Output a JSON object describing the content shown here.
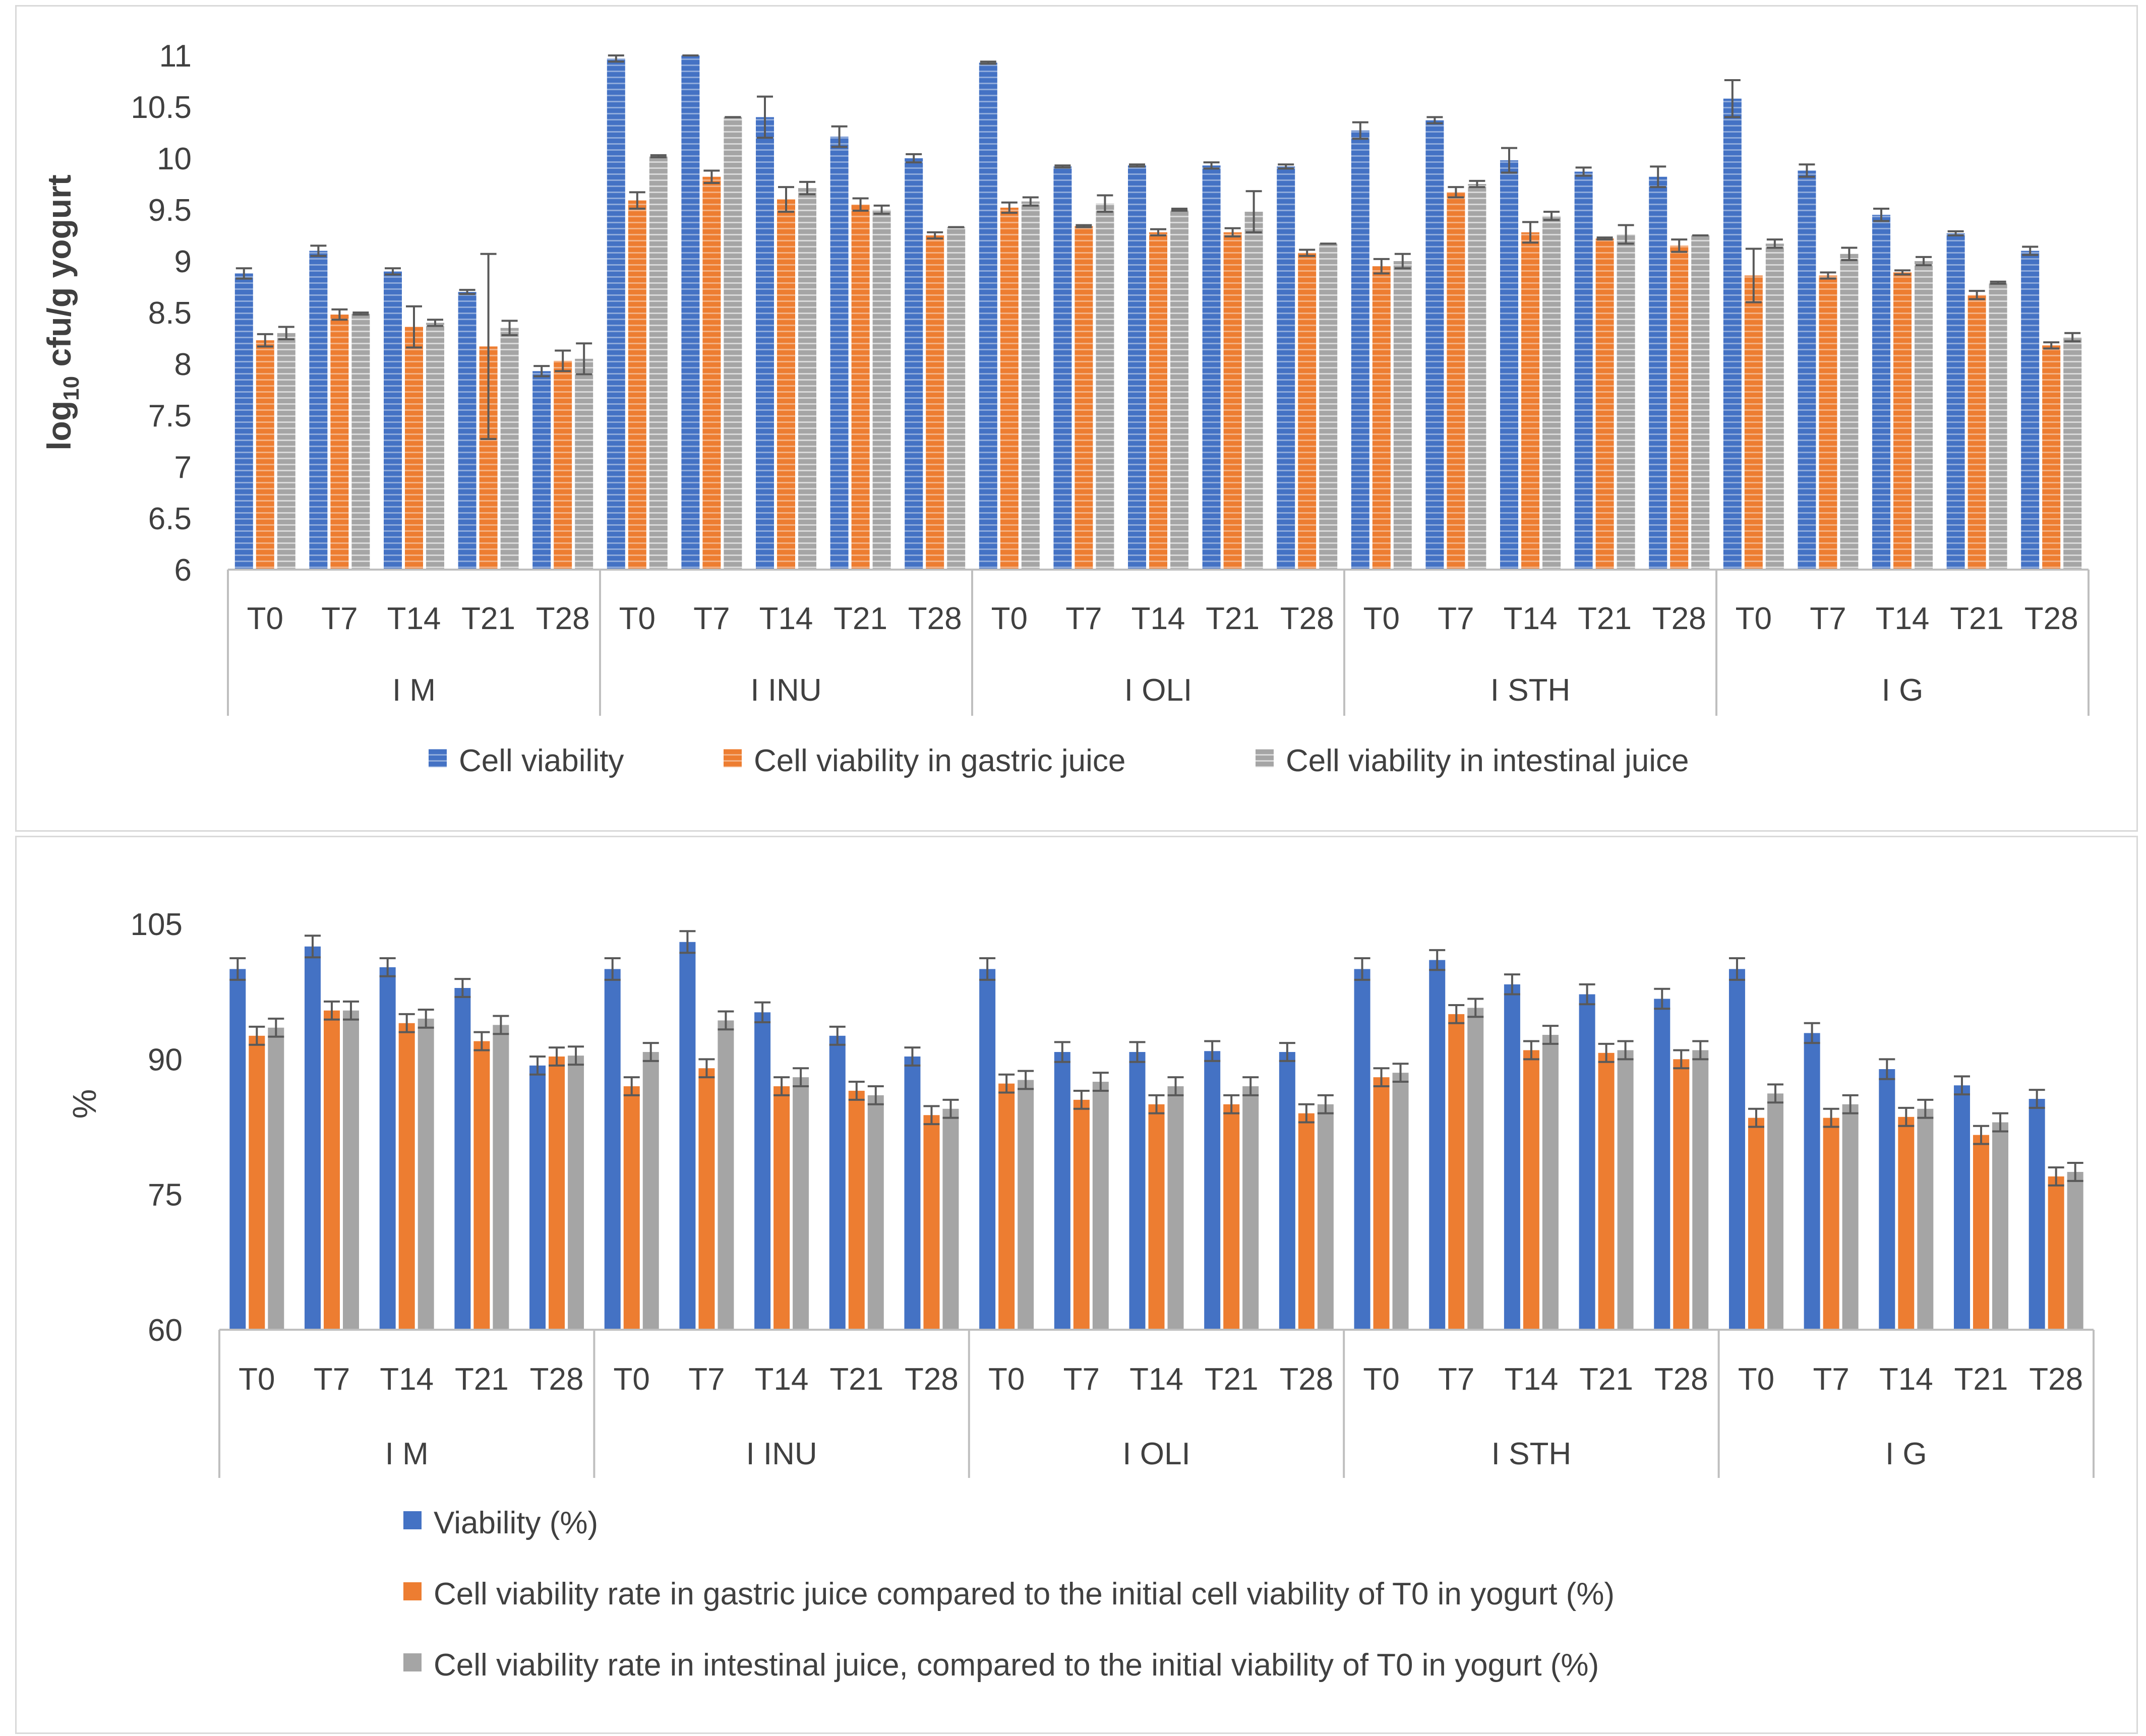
{
  "chart_data": [
    {
      "type": "bar",
      "title": "",
      "ylabel": "log10 cfu/g yogurt",
      "ylabel_main": "log",
      "ylabel_sub": "10",
      "ylabel_rest": " cfu/g yogurt",
      "ylim": [
        6,
        11
      ],
      "yticks": [
        "6",
        "6.5",
        "7",
        "7.5",
        "8",
        "8.5",
        "9",
        "9.5",
        "10",
        "10.5",
        "11"
      ],
      "groups": [
        "I M",
        "I INU",
        "I OLI",
        "I STH",
        "I G"
      ],
      "timepoints": [
        "T0",
        "T7",
        "T14",
        "T21",
        "T28"
      ],
      "legend_position": "bottom",
      "series": [
        {
          "name": "Cell viability",
          "color": "#4472c4",
          "values": [
            8.88,
            9.1,
            8.9,
            8.7,
            7.93,
            10.97,
            11.0,
            10.4,
            10.21,
            10.0,
            10.93,
            9.92,
            9.93,
            9.93,
            9.92,
            10.27,
            10.37,
            9.98,
            9.87,
            9.82,
            10.58,
            9.88,
            9.45,
            9.27,
            9.1
          ],
          "errors": [
            0.05,
            0.05,
            0.03,
            0.02,
            0.05,
            0.03,
            0.0,
            0.2,
            0.1,
            0.04,
            0.01,
            0.01,
            0.01,
            0.03,
            0.02,
            0.08,
            0.03,
            0.12,
            0.04,
            0.1,
            0.18,
            0.06,
            0.06,
            0.02,
            0.04
          ]
        },
        {
          "name": "Cell viability in gastric juice",
          "color": "#ed7d31",
          "values": [
            8.23,
            8.48,
            8.36,
            8.17,
            8.03,
            9.59,
            9.82,
            9.6,
            9.55,
            9.25,
            9.52,
            9.34,
            9.28,
            9.28,
            9.08,
            8.95,
            9.67,
            9.28,
            9.22,
            9.15,
            8.86,
            8.86,
            8.89,
            8.67,
            8.18
          ],
          "errors": [
            0.06,
            0.05,
            0.2,
            0.9,
            0.1,
            0.08,
            0.06,
            0.12,
            0.06,
            0.03,
            0.05,
            0.01,
            0.03,
            0.04,
            0.03,
            0.07,
            0.05,
            0.1,
            0.01,
            0.06,
            0.26,
            0.03,
            0.02,
            0.04,
            0.03
          ]
        },
        {
          "name": "Cell viability in intestinal juice",
          "color": "#a5a5a5",
          "values": [
            8.3,
            8.49,
            8.4,
            8.35,
            8.05,
            10.02,
            10.4,
            9.71,
            9.5,
            9.33,
            9.58,
            9.56,
            9.5,
            9.48,
            9.17,
            9.0,
            9.75,
            9.44,
            9.26,
            9.25,
            9.17,
            9.07,
            9.0,
            8.79,
            8.26
          ],
          "errors": [
            0.06,
            0.01,
            0.03,
            0.07,
            0.15,
            0.01,
            0.0,
            0.06,
            0.04,
            0.0,
            0.04,
            0.08,
            0.01,
            0.2,
            0.0,
            0.07,
            0.03,
            0.04,
            0.09,
            0.0,
            0.04,
            0.06,
            0.04,
            0.01,
            0.04
          ]
        }
      ]
    },
    {
      "type": "bar",
      "title": "",
      "ylabel": "%",
      "ylim": [
        60,
        105
      ],
      "yticks": [
        "60",
        "75",
        "90",
        "105"
      ],
      "groups": [
        "I M",
        "I INU",
        "I OLI",
        "I STH",
        "I G"
      ],
      "timepoints": [
        "T0",
        "T7",
        "T14",
        "T21",
        "T28"
      ],
      "legend_position": "bottom",
      "series": [
        {
          "name": "Viability (%)",
          "color": "#4472c4",
          "values": [
            100,
            102.5,
            100.2,
            97.9,
            89.3,
            100,
            103,
            95.2,
            92.6,
            90.3,
            100,
            90.8,
            90.8,
            90.9,
            90.8,
            100,
            101,
            98.3,
            97.2,
            96.7,
            100,
            92.9,
            88.9,
            87.1,
            85.6
          ],
          "errors": [
            1.2,
            1.2,
            1.0,
            1.0,
            1.0,
            1.2,
            1.2,
            1.1,
            1.0,
            1.0,
            1.2,
            1.1,
            1.1,
            1.1,
            1.0,
            1.2,
            1.1,
            1.1,
            1.1,
            1.1,
            1.2,
            1.1,
            1.1,
            1.0,
            1.0
          ]
        },
        {
          "name": "Cell viability rate in gastric juice compared to the initial cell viability of T0 in yogurt (%)",
          "color": "#ed7d31",
          "values": [
            92.6,
            95.4,
            94.0,
            92.0,
            90.3,
            87.0,
            89.0,
            87.0,
            86.5,
            83.8,
            87.3,
            85.5,
            85.0,
            85.0,
            84.0,
            88.0,
            95.0,
            91.0,
            90.7,
            90.0,
            83.5,
            83.5,
            83.6,
            81.6,
            77.0
          ],
          "errors": [
            1.0,
            1.0,
            1.0,
            1.0,
            1.0,
            1.0,
            1.0,
            1.0,
            1.0,
            1.0,
            1.0,
            1.0,
            1.0,
            1.0,
            1.0,
            1.0,
            1.0,
            1.0,
            1.0,
            1.0,
            1.0,
            1.0,
            1.0,
            1.0,
            1.0
          ]
        },
        {
          "name": "Cell viability rate in intestinal juice, compared to the initial viability of T0 in yogurt (%)",
          "color": "#a5a5a5",
          "values": [
            93.5,
            95.4,
            94.5,
            93.8,
            90.4,
            90.8,
            94.3,
            88.0,
            86.0,
            84.5,
            87.7,
            87.5,
            87.0,
            87.0,
            85.0,
            88.5,
            95.7,
            92.7,
            91.0,
            91.0,
            86.2,
            85.0,
            84.5,
            83.0,
            77.5
          ],
          "errors": [
            1.0,
            1.0,
            1.0,
            1.0,
            1.0,
            1.0,
            1.0,
            1.0,
            1.0,
            1.0,
            1.0,
            1.0,
            1.0,
            1.0,
            1.0,
            1.0,
            1.0,
            1.0,
            1.0,
            1.0,
            1.0,
            1.0,
            1.0,
            1.0,
            1.0
          ]
        }
      ]
    }
  ]
}
